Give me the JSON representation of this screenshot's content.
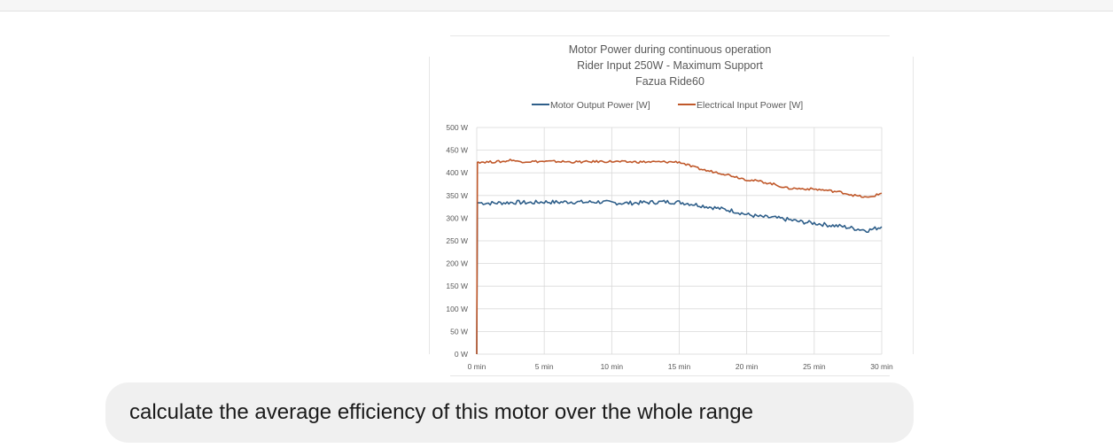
{
  "message": {
    "text": "calculate the average efficiency of this motor over the whole range"
  },
  "chart_data": {
    "type": "line",
    "title_lines": [
      "Motor Power during continuous operation",
      "Rider Input 250W - Maximum Support",
      "Fazua Ride60"
    ],
    "legend_position": "top",
    "x_ticks": [
      "0 min",
      "5 min",
      "10 min",
      "15 min",
      "20 min",
      "25 min",
      "30 min"
    ],
    "y_ticks": [
      "0 W",
      "50 W",
      "100 W",
      "150 W",
      "200 W",
      "250 W",
      "300 W",
      "350 W",
      "400 W",
      "450 W",
      "500 W"
    ],
    "xlim": [
      0,
      30
    ],
    "ylim": [
      0,
      500
    ],
    "grid": true,
    "x_unit": "min",
    "y_unit": "W",
    "series": [
      {
        "name": "Motor Output Power [W]",
        "color": "#2f5f8a",
        "x": [
          0,
          0.05,
          0.1,
          1,
          2,
          3,
          4,
          5,
          6,
          7,
          8,
          9,
          10,
          11,
          12,
          13,
          14,
          15,
          16,
          17,
          18,
          19,
          20,
          21,
          22,
          23,
          24,
          25,
          26,
          27,
          28,
          29,
          30
        ],
        "y": [
          0,
          335,
          334,
          333,
          334,
          335,
          334,
          336,
          335,
          336,
          335,
          336,
          334,
          333,
          334,
          335,
          336,
          335,
          331,
          326,
          321,
          316,
          308,
          303,
          301,
          297,
          292,
          289,
          285,
          282,
          277,
          273,
          281
        ]
      },
      {
        "name": "Electrical Input Power [W]",
        "color": "#c0582a",
        "x": [
          0,
          0.05,
          0.1,
          1,
          2,
          2.6,
          3,
          4,
          5,
          6,
          7,
          8,
          9,
          10,
          11,
          12,
          13,
          14,
          15,
          16,
          17,
          18,
          19,
          20,
          21,
          22,
          23,
          24,
          25,
          26,
          27,
          28,
          29,
          30
        ],
        "y": [
          0,
          423,
          424,
          424,
          425,
          429,
          425,
          425,
          425,
          425,
          424,
          424,
          425,
          425,
          424,
          424,
          424,
          424,
          424,
          413,
          405,
          400,
          393,
          385,
          381,
          375,
          366,
          365,
          364,
          361,
          357,
          350,
          345,
          355
        ]
      }
    ]
  }
}
